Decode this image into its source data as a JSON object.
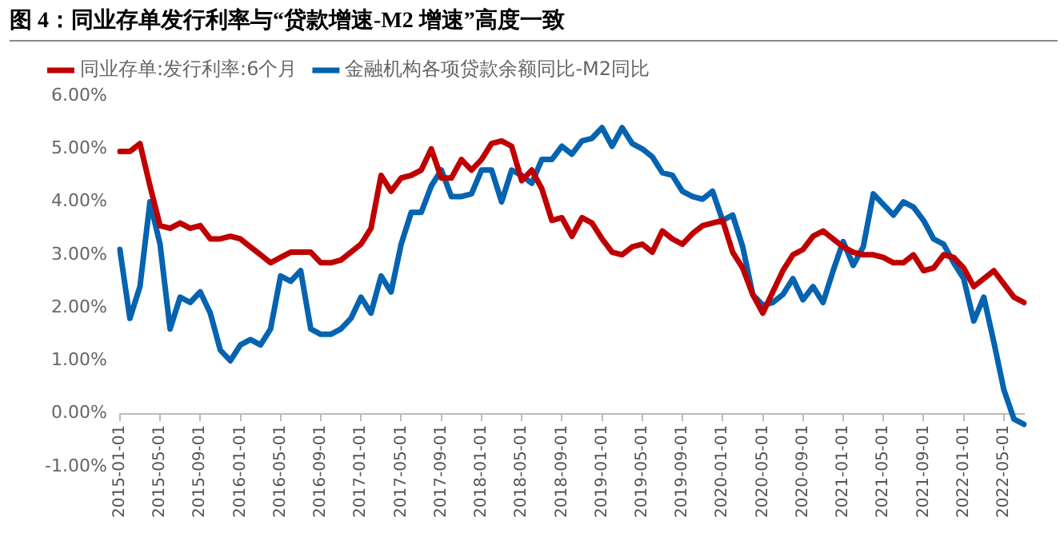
{
  "chart_data": {
    "type": "line",
    "title": "图  4：同业存单发行利率与“贷款增速-M2 增速”高度一致",
    "categories": [
      "2015-01-01",
      null,
      null,
      null,
      "2015-05-01",
      null,
      null,
      null,
      "2015-09-01",
      null,
      null,
      null,
      "2016-01-01",
      null,
      null,
      null,
      "2016-05-01",
      null,
      null,
      null,
      "2016-09-01",
      null,
      null,
      null,
      "2017-01-01",
      null,
      null,
      null,
      "2017-05-01",
      null,
      null,
      null,
      "2017-09-01",
      null,
      null,
      null,
      "2018-01-01",
      null,
      null,
      null,
      "2018-05-01",
      null,
      null,
      null,
      "2018-09-01",
      null,
      null,
      null,
      "2019-01-01",
      null,
      null,
      null,
      "2019-05-01",
      null,
      null,
      null,
      "2019-09-01",
      null,
      null,
      null,
      "2020-01-01",
      null,
      null,
      null,
      "2020-05-01",
      null,
      null,
      null,
      "2020-09-01",
      null,
      null,
      null,
      "2021-01-01",
      null,
      null,
      null,
      "2021-05-01",
      null,
      null,
      null,
      "2021-09-01",
      null,
      null,
      null,
      "2022-01-01",
      null,
      null,
      null,
      "2022-05-01",
      null,
      null
    ],
    "series": [
      {
        "name": "同业存单:发行利率:6个月",
        "color": "#c00000",
        "values": [
          4.95,
          4.95,
          5.1,
          4.3,
          3.55,
          3.5,
          3.6,
          3.5,
          3.55,
          3.3,
          3.3,
          3.35,
          3.3,
          3.15,
          3.0,
          2.85,
          2.95,
          3.05,
          3.05,
          3.05,
          2.85,
          2.85,
          2.9,
          3.05,
          3.2,
          3.5,
          4.5,
          4.2,
          4.45,
          4.5,
          4.6,
          5.0,
          4.45,
          4.45,
          4.8,
          4.6,
          4.8,
          5.1,
          5.15,
          5.05,
          4.4,
          4.6,
          4.25,
          3.65,
          3.7,
          3.35,
          3.7,
          3.6,
          3.3,
          3.05,
          3.0,
          3.15,
          3.2,
          3.05,
          3.45,
          3.3,
          3.2,
          3.4,
          3.55,
          3.6,
          3.65,
          3.05,
          2.75,
          2.25,
          1.9,
          2.3,
          2.7,
          3.0,
          3.1,
          3.35,
          3.45,
          3.3,
          3.15,
          3.05,
          3.0,
          3.0,
          2.95,
          2.85,
          2.85,
          3.0,
          2.7,
          2.75,
          3.0,
          2.95,
          2.75,
          2.4,
          2.55,
          2.7,
          2.45,
          2.2,
          2.1
        ]
      },
      {
        "name": "金融机构各项贷款余额同比-M2同比",
        "color": "#0563b0",
        "values": [
          3.1,
          1.8,
          2.4,
          4.0,
          3.2,
          1.6,
          2.2,
          2.1,
          2.3,
          1.9,
          1.2,
          1.0,
          1.3,
          1.4,
          1.3,
          1.6,
          2.6,
          2.5,
          2.7,
          1.6,
          1.5,
          1.5,
          1.6,
          1.8,
          2.2,
          1.9,
          2.6,
          2.3,
          3.2,
          3.8,
          3.8,
          4.3,
          4.6,
          4.1,
          4.1,
          4.15,
          4.6,
          4.6,
          4.0,
          4.6,
          4.5,
          4.35,
          4.8,
          4.8,
          5.05,
          4.9,
          5.15,
          5.2,
          5.4,
          5.05,
          5.4,
          5.1,
          5.0,
          4.85,
          4.55,
          4.5,
          4.2,
          4.1,
          4.05,
          4.2,
          3.65,
          3.75,
          3.15,
          2.25,
          2.05,
          2.1,
          2.25,
          2.55,
          2.15,
          2.4,
          2.1,
          2.7,
          3.25,
          2.8,
          3.15,
          4.15,
          3.95,
          3.75,
          4.0,
          3.9,
          3.65,
          3.3,
          3.2,
          2.85,
          2.55,
          1.75,
          2.2,
          1.35,
          0.45,
          -0.1,
          -0.2
        ]
      }
    ],
    "ylim": [
      -1,
      6
    ],
    "yticks": [
      {
        "value": -1,
        "label": "-1.00%"
      },
      {
        "value": 0,
        "label": "0.00%"
      },
      {
        "value": 1,
        "label": "1.00%"
      },
      {
        "value": 2,
        "label": "2.00%"
      },
      {
        "value": 3,
        "label": "3.00%"
      },
      {
        "value": 4,
        "label": "4.00%"
      },
      {
        "value": 5,
        "label": "5.00%"
      },
      {
        "value": 6,
        "label": "6.00%"
      }
    ],
    "grid": false,
    "legend": "top",
    "marker": "none",
    "line_style": "solid"
  }
}
